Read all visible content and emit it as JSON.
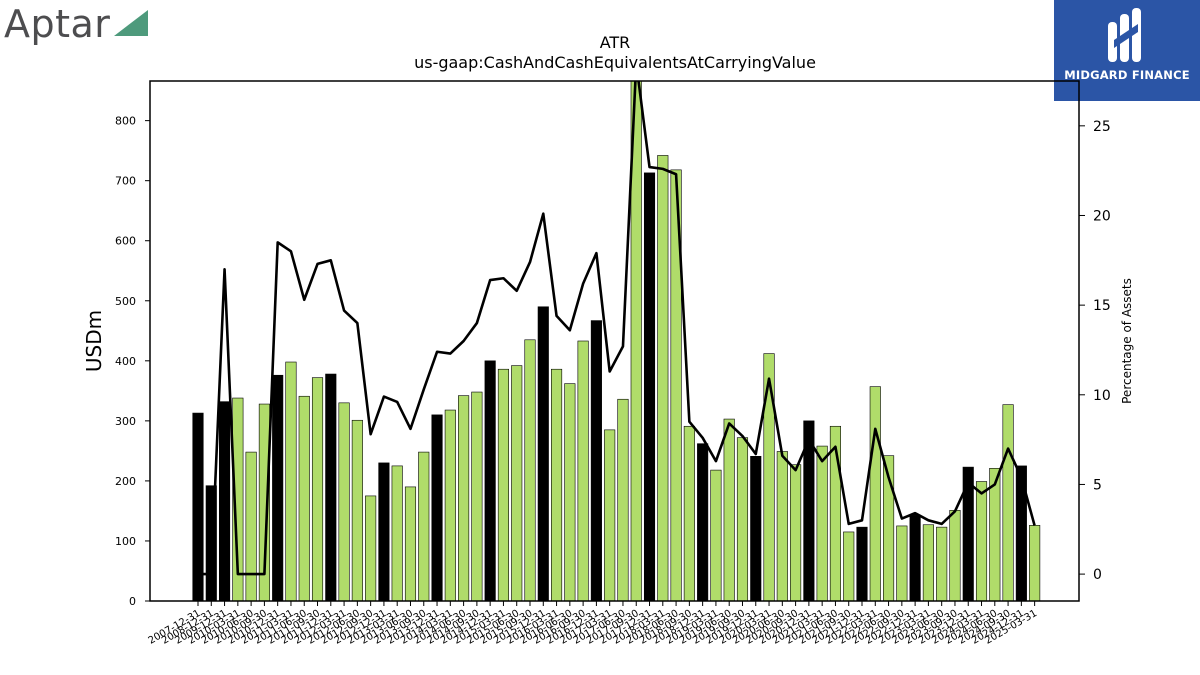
{
  "branding": {
    "left_logo_text": "Aptar",
    "left_logo_accent": "#4e9a7c",
    "right_logo_text": "MIDGARD FINANCE",
    "right_logo_bg": "#2b55a6"
  },
  "chart_data": {
    "type": "bar+line",
    "title": "ATR",
    "subtitle": "us-gaap:CashAndCashEquivalentsAtCarryingValue",
    "ylabel": "USDm",
    "y2label": "Percentage of Assets",
    "ylim": [
      0,
      866
    ],
    "y2lim": [
      -1.5,
      27.5
    ],
    "yticks": [
      0,
      100,
      200,
      300,
      400,
      500,
      600,
      700,
      800
    ],
    "y2ticks": [
      0,
      5,
      10,
      15,
      20,
      25
    ],
    "colors": {
      "annual_bar": "#000000",
      "quarter_bar": "#b0dc6a",
      "line": "#000000"
    },
    "x_tick_labels": [
      "2007-12-31",
      "2008-12-31",
      "2009-12-31",
      "2010-03-31",
      "2010-06-30",
      "2010-09-30",
      "2010-12-31",
      "2011-03-31",
      "2011-06-30",
      "2011-09-30",
      "2011-12-31",
      "2012-03-31",
      "2012-06-30",
      "2012-09-30",
      "2012-12-31",
      "2013-03-31",
      "2013-06-30",
      "2013-09-30",
      "2013-12-31",
      "2014-03-31",
      "2014-06-30",
      "2014-09-30",
      "2014-12-31",
      "2015-03-31",
      "2015-06-30",
      "2015-09-30",
      "2015-12-31",
      "2016-03-31",
      "2016-06-30",
      "2016-09-30",
      "2016-12-31",
      "2017-03-31",
      "2017-06-30",
      "2017-09-30",
      "2017-12-31",
      "2018-03-31",
      "2018-06-30",
      "2018-09-30",
      "2018-12-31",
      "2019-03-31",
      "2019-06-30",
      "2019-09-30",
      "2019-12-31",
      "2020-03-31",
      "2020-06-30",
      "2020-09-30",
      "2020-12-31",
      "2021-03-31",
      "2021-06-30",
      "2021-09-30",
      "2021-12-31",
      "2022-03-31",
      "2022-06-30",
      "2022-09-30",
      "2022-12-31",
      "2023-03-31",
      "2023-06-30",
      "2023-09-30",
      "2023-12-31",
      "2024-03-31",
      "2024-06-30",
      "2024-09-30",
      "2024-12-31",
      "2025-03-31"
    ],
    "values": [
      313,
      192,
      332,
      338,
      248,
      328,
      376,
      398,
      341,
      372,
      378,
      330,
      301,
      175,
      230,
      225,
      190,
      248,
      310,
      318,
      342,
      348,
      400,
      386,
      392,
      435,
      490,
      386,
      362,
      433,
      467,
      285,
      336,
      880,
      713,
      742,
      718,
      291,
      262,
      218,
      303,
      272,
      241,
      412,
      249,
      227,
      300,
      258,
      291,
      115,
      123,
      357,
      242,
      125,
      143,
      127,
      123,
      151,
      223,
      199,
      221,
      327,
      225,
      126
    ],
    "annual": [
      true,
      true,
      true,
      false,
      false,
      false,
      true,
      false,
      false,
      false,
      true,
      false,
      false,
      false,
      true,
      false,
      false,
      false,
      true,
      false,
      false,
      false,
      true,
      false,
      false,
      false,
      true,
      false,
      false,
      false,
      true,
      false,
      false,
      false,
      true,
      false,
      false,
      false,
      true,
      false,
      false,
      false,
      true,
      false,
      false,
      false,
      true,
      false,
      false,
      false,
      true,
      false,
      false,
      false,
      true,
      false,
      false,
      false,
      true,
      false,
      false,
      false,
      true,
      false
    ],
    "pct_of_assets": [
      0.0,
      0.0,
      17.0,
      0.0,
      0.0,
      0.0,
      18.5,
      18.0,
      15.3,
      17.3,
      17.5,
      14.7,
      14.0,
      7.8,
      9.9,
      9.6,
      8.1,
      10.3,
      12.4,
      12.3,
      13.0,
      14.0,
      16.4,
      16.5,
      15.8,
      17.4,
      20.1,
      14.4,
      13.6,
      16.2,
      17.9,
      11.3,
      12.7,
      28.5,
      22.7,
      22.6,
      22.3,
      8.5,
      7.6,
      6.3,
      8.4,
      7.7,
      6.7,
      10.9,
      6.6,
      5.8,
      7.5,
      6.3,
      7.1,
      2.8,
      3.0,
      8.1,
      5.4,
      3.1,
      3.4,
      3.0,
      2.8,
      3.5,
      5.1,
      4.5,
      5.0,
      7.0,
      5.4,
      2.7
    ],
    "grid": false,
    "legend": "none"
  }
}
